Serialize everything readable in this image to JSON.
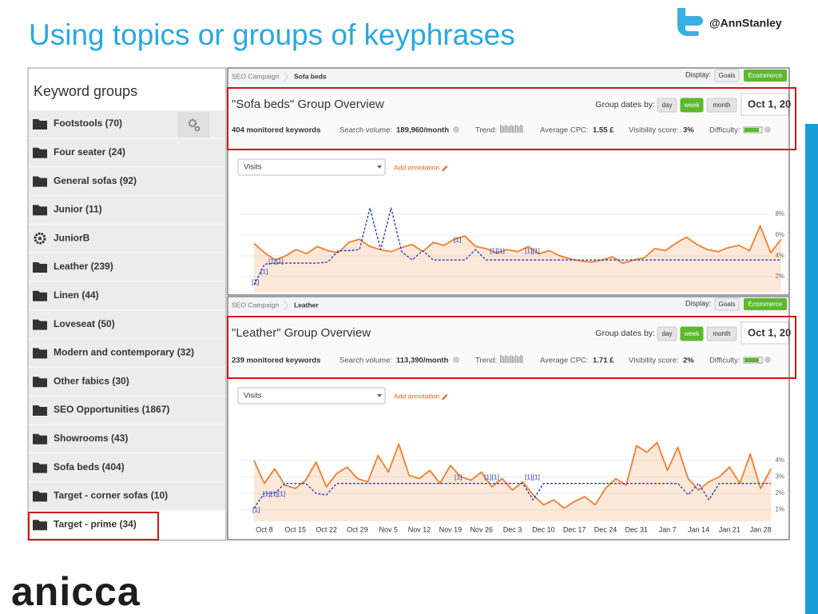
{
  "header": {
    "title": "Using topics or groups of keyphrases",
    "handle": "@AnnStanley"
  },
  "keyword_groups": {
    "title": "Keyword groups",
    "items": [
      {
        "label": "Footstools (70)"
      },
      {
        "label": "Four seater (24)"
      },
      {
        "label": "General sofas (92)"
      },
      {
        "label": "Junior (11)"
      },
      {
        "label": "JuniorB",
        "icon": "gear"
      },
      {
        "label": "Leather (239)"
      },
      {
        "label": "Linen (44)"
      },
      {
        "label": "Loveseat (50)"
      },
      {
        "label": "Modern and contemporary (32)"
      },
      {
        "label": "Other fabics (30)"
      },
      {
        "label": "SEO Opportunities (1867)"
      },
      {
        "label": "Showrooms (43)"
      },
      {
        "label": "Sofa beds (404)"
      },
      {
        "label": "Target - corner sofas (10)"
      },
      {
        "label": "Target - prime (34)"
      }
    ]
  },
  "panels": [
    {
      "breadcrumb": [
        "SEO Campaign",
        "Sofa beds"
      ],
      "display_label": "Display:",
      "display_options": [
        "Goals",
        "Ecommerce"
      ],
      "overview_title": "\"Sofa beds\" Group Overview",
      "group_dates_label": "Group dates by:",
      "group_dates_options": [
        "day",
        "week",
        "month"
      ],
      "date": "Oct 1, 20",
      "keywords": "404 monitored keywords",
      "search_volume_label": "Search volume:",
      "search_volume": "189,960/month",
      "trend_label": "Trend:",
      "cpc_label": "Average CPC:",
      "cpc": "1.55 £",
      "visibility_label": "Visibility score:",
      "visibility": "3%",
      "difficulty_label": "Difficulty:",
      "metric": "Visits",
      "add_annotation": "Add annotation",
      "chart": {
        "type": "line",
        "grid": true,
        "ylim": [
          0.5,
          9.5
        ],
        "yticks": [
          {
            "value": 8,
            "label": "8%"
          },
          {
            "value": 6,
            "label": "6%"
          },
          {
            "value": 4,
            "label": "4%"
          },
          {
            "value": 2,
            "label": "2%"
          }
        ],
        "categories": [
          null,
          null,
          null,
          null,
          null,
          null,
          null,
          null,
          null,
          null,
          null,
          null,
          null,
          null,
          null,
          null,
          null,
          null,
          null,
          null,
          null,
          null,
          null,
          null,
          null,
          null,
          null,
          null,
          null,
          null,
          null,
          null,
          null,
          null,
          null,
          null,
          null,
          null,
          null,
          null,
          null,
          null,
          null,
          null,
          null,
          null,
          null,
          null,
          null,
          null,
          null
        ],
        "annotations": [
          "[1]",
          "[1][1]",
          "[1]",
          "[1]",
          "[1][1]",
          "[1][1]"
        ],
        "series": [
          {
            "color": "#f07f2e",
            "area": true,
            "values": [
              5.2,
              4.3,
              3.6,
              4.0,
              4.6,
              4.2,
              4.9,
              4.5,
              4.3,
              5.3,
              5.6,
              4.9,
              4.6,
              4.4,
              4.8,
              5.1,
              4.4,
              5.3,
              5.0,
              5.6,
              5.9,
              4.9,
              4.7,
              4.3,
              4.6,
              4.4,
              4.9,
              4.2,
              4.5,
              4.0,
              3.7,
              3.5,
              3.4,
              3.6,
              3.9,
              3.3,
              3.6,
              3.8,
              4.7,
              4.5,
              5.2,
              5.8,
              5.1,
              4.6,
              4.4,
              4.8,
              5.0,
              4.5,
              6.9,
              4.3,
              5.6
            ]
          },
          {
            "color": "#2a3fbf",
            "dashed": true,
            "values": [
              1.2,
              3.2,
              3.3,
              3.3,
              3.3,
              3.3,
              3.3,
              3.4,
              4.5,
              4.5,
              4.6,
              8.6,
              4.6,
              8.6,
              4.4,
              3.6,
              4.5,
              3.6,
              3.6,
              3.6,
              3.6,
              4.6,
              3.6,
              3.6,
              3.6,
              3.6,
              3.6,
              3.6,
              3.6,
              3.6,
              3.6,
              3.6,
              3.6,
              3.6,
              3.6,
              3.6,
              3.6,
              3.6,
              3.6,
              3.6,
              3.6,
              3.6,
              3.6,
              3.6,
              3.6,
              3.6,
              3.6,
              3.6,
              3.6,
              3.6,
              3.6
            ]
          }
        ]
      }
    },
    {
      "breadcrumb": [
        "SEO Campaign",
        "Leather"
      ],
      "display_label": "Display:",
      "display_options": [
        "Goals",
        "Ecommerce"
      ],
      "overview_title": "\"Leather\" Group Overview",
      "group_dates_label": "Group dates by:",
      "group_dates_options": [
        "day",
        "week",
        "month"
      ],
      "date": "Oct 1, 20",
      "keywords": "239 monitored keywords",
      "search_volume_label": "Search volume:",
      "search_volume": "113,390/month",
      "trend_label": "Trend:",
      "cpc_label": "Average CPC:",
      "cpc": "1.71 £",
      "visibility_label": "Visibility score:",
      "visibility": "2%",
      "difficulty_label": "Difficulty:",
      "metric": "Visits",
      "add_annotation": "Add annotation",
      "chart": {
        "type": "line",
        "grid": true,
        "ylim": [
          0.3,
          5.8
        ],
        "yticks": [
          {
            "value": 4,
            "label": "4%"
          },
          {
            "value": 3,
            "label": "3%"
          },
          {
            "value": 2,
            "label": "2%"
          },
          {
            "value": 1,
            "label": "1%"
          }
        ],
        "categories": [
          null,
          "Oct 8",
          null,
          null,
          "Oct 15",
          null,
          null,
          "Oct 22",
          null,
          null,
          "Oct 29",
          null,
          null,
          "Nov 5",
          null,
          null,
          "Nov 12",
          null,
          null,
          "Nov 19",
          null,
          null,
          "Nov 26",
          null,
          null,
          "Dec 3",
          null,
          null,
          "Dec 10",
          null,
          null,
          "Dec 17",
          null,
          null,
          "Dec 24",
          null,
          null,
          "Dec 31",
          null,
          null,
          "Jan 7",
          null,
          null,
          "Jan 14",
          null,
          null,
          "Jan 21",
          null,
          null,
          "Jan 28",
          null,
          null
        ],
        "annotations": [
          "[1]",
          "[1][1][1]",
          "[1]",
          "[1][1]",
          "[1][1]"
        ],
        "series": [
          {
            "color": "#f07f2e",
            "area": true,
            "values": [
              4.0,
              2.6,
              3.5,
              2.5,
              2.3,
              2.8,
              3.9,
              2.4,
              3.2,
              3.6,
              2.9,
              2.7,
              4.3,
              3.3,
              5.0,
              3.1,
              2.9,
              3.4,
              2.6,
              3.7,
              3.0,
              2.8,
              3.3,
              2.4,
              2.9,
              2.2,
              2.7,
              1.9,
              1.3,
              1.6,
              1.1,
              1.5,
              1.8,
              1.3,
              2.3,
              2.9,
              2.5,
              4.9,
              4.5,
              5.1,
              3.4,
              4.8,
              2.9,
              2.2,
              2.7,
              3.0,
              3.6,
              2.6,
              4.4,
              2.3,
              3.5
            ]
          },
          {
            "color": "#2a3fbf",
            "dashed": true,
            "values": [
              1.1,
              2.0,
              2.0,
              2.6,
              2.6,
              2.6,
              2.0,
              1.9,
              2.6,
              2.6,
              2.6,
              2.6,
              2.6,
              2.6,
              2.6,
              2.6,
              2.6,
              2.6,
              2.6,
              2.6,
              2.6,
              2.6,
              2.6,
              2.6,
              2.6,
              2.6,
              2.6,
              1.6,
              2.6,
              2.6,
              2.6,
              2.6,
              2.6,
              2.6,
              2.6,
              2.6,
              2.6,
              2.6,
              2.6,
              2.6,
              2.6,
              2.6,
              1.9,
              2.6,
              1.6,
              2.6,
              2.6,
              2.6,
              2.6,
              2.6,
              2.6
            ]
          }
        ]
      }
    }
  ],
  "footer": {
    "logo": "anicca"
  }
}
